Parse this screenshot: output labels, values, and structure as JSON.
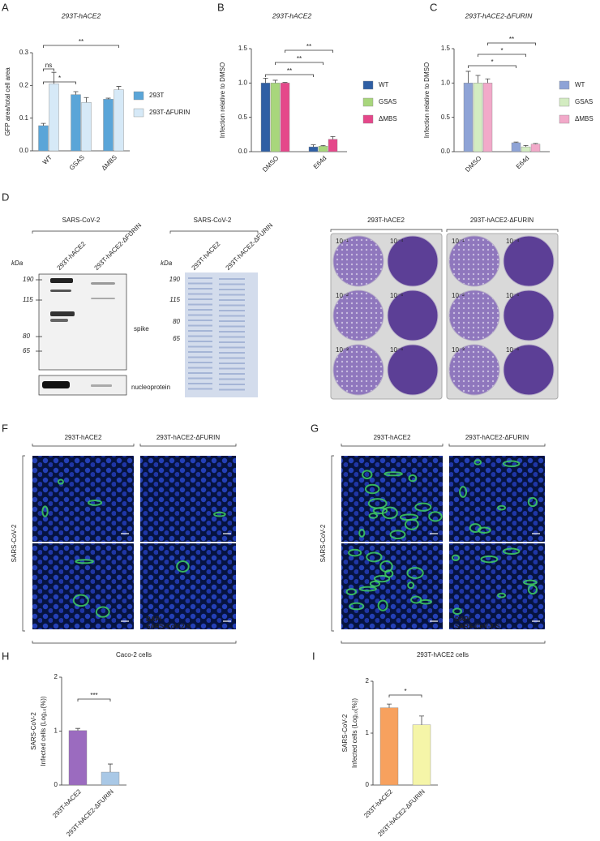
{
  "chart_data": [
    {
      "panel": "A",
      "type": "bar",
      "title": "293T-hACE2",
      "y_label": "GFP area/total cell area",
      "categories": [
        "WT",
        "GSAS",
        "ΔMBS"
      ],
      "series": [
        {
          "name": "293T",
          "color": "#5aa5d8",
          "values": [
            0.077,
            0.172,
            0.158
          ],
          "errors": [
            0.007,
            0.009,
            0.003
          ]
        },
        {
          "name": "293T-ΔFURIN",
          "color": "#d6e9f7",
          "values": [
            0.205,
            0.148,
            0.187
          ],
          "errors": [
            0.035,
            0.015,
            0.01
          ]
        }
      ],
      "ylim": [
        0,
        0.3
      ],
      "yticks": [
        {
          "value": 0,
          "label": "0.0"
        },
        0.1,
        0.2,
        0.3
      ],
      "annotations": [
        "ns",
        "*",
        "**"
      ]
    },
    {
      "panel": "B",
      "type": "bar",
      "title": "293T-hACE2",
      "y_label": "Infection relative to DMSO",
      "categories": [
        "DMSO",
        "E64d"
      ],
      "series": [
        {
          "name": "WT",
          "color": "#2f5fa4",
          "values": [
            1.0,
            0.07
          ],
          "errors": [
            0.07,
            0.03
          ]
        },
        {
          "name": "GSAS",
          "color": "#a8d67c",
          "values": [
            1.0,
            0.08
          ],
          "errors": [
            0.04,
            0.01
          ]
        },
        {
          "name": "ΔMBS",
          "color": "#e5478a",
          "values": [
            1.0,
            0.18
          ],
          "errors": [
            0.01,
            0.04
          ]
        }
      ],
      "ylim": [
        0,
        1.5
      ],
      "yticks": [
        {
          "value": 0,
          "label": "0.0"
        },
        0.5,
        {
          "value": 1,
          "label": "1.0"
        },
        1.5
      ],
      "annotations": [
        "**",
        "**",
        "**"
      ]
    },
    {
      "panel": "C",
      "type": "bar",
      "title": "293T-hACE2-ΔFURIN",
      "y_label": "Infection relative to DMSO",
      "categories": [
        "DMSO",
        "E64d"
      ],
      "series": [
        {
          "name": "WT",
          "color": "#8ea3d6",
          "values": [
            1.0,
            0.13
          ],
          "errors": [
            0.17,
            0.01
          ]
        },
        {
          "name": "GSAS",
          "color": "#d3ecc1",
          "values": [
            1.0,
            0.07
          ],
          "errors": [
            0.11,
            0.02
          ]
        },
        {
          "name": "ΔMBS",
          "color": "#f2a9c9",
          "values": [
            1.0,
            0.11
          ],
          "errors": [
            0.06,
            0.01
          ]
        }
      ],
      "ylim": [
        0,
        1.5
      ],
      "yticks": [
        {
          "value": 0,
          "label": "0.0"
        },
        0.5,
        {
          "value": 1,
          "label": "1.0"
        },
        1.5
      ],
      "annotations": [
        "*",
        "*",
        "**"
      ]
    },
    {
      "panel": "H",
      "type": "bar",
      "y_label": [
        "SARS-CoV-2",
        "Infected cells (Log₁₀(%))"
      ],
      "categories": [
        "293T-hACE2",
        "293T-hACE2-ΔFURIN"
      ],
      "values": [
        1.01,
        0.24
      ],
      "errors": [
        0.04,
        0.15
      ],
      "colors": [
        "#9b6bbf",
        "#a9c8e6"
      ],
      "ylim": [
        0,
        2
      ],
      "yticks": [
        0,
        1,
        2
      ],
      "annotations": [
        "***"
      ]
    },
    {
      "panel": "I",
      "type": "bar",
      "y_label": [
        "SARS-CoV-2",
        "Infected cells (Log₁₀(%))"
      ],
      "categories": [
        "293T-hACE2",
        "293T-hACE2-ΔFURIN"
      ],
      "values": [
        1.49,
        1.16
      ],
      "errors": [
        0.07,
        0.17
      ],
      "colors": [
        "#f7a15e",
        "#f5f5a8"
      ],
      "ylim": [
        0,
        2
      ],
      "yticks": [
        0,
        1,
        2
      ],
      "annotations": [
        "*"
      ]
    }
  ],
  "panel_d": {
    "label": "D",
    "western_blot": {
      "header": "SARS-CoV-2",
      "lanes": [
        "293T-hACE2",
        "293T-hACE2-ΔFURIN"
      ],
      "unit": "kDa",
      "markers": [
        190,
        115,
        80,
        65
      ],
      "bands": [
        "spike",
        "nucleoprotein"
      ]
    },
    "stained_gel": {
      "header": "SARS-CoV-2",
      "lanes": [
        "293T-hACE2",
        "293T-hACE2-ΔFURIN"
      ],
      "unit": "kDa",
      "markers": [
        190,
        115,
        80,
        65
      ]
    },
    "plaque_assay": {
      "plates": [
        "293T-hACE2",
        "293T-hACE2-ΔFURIN"
      ],
      "dilutions": [
        "10⁻¹",
        "10⁻⁴",
        "10⁻²",
        "10⁻⁵",
        "10⁻³",
        "10⁻⁶"
      ]
    }
  },
  "panel_f": {
    "label": "F",
    "columns": [
      "293T-hACE2",
      "293T-hACE2-ΔFURIN"
    ],
    "row_label": "SARS-CoV-2",
    "stains": [
      "DAPI",
      "SARS-CoV-2-S"
    ],
    "cells": "Caco-2 cells"
  },
  "panel_g": {
    "label": "G",
    "columns": [
      "293T-hACE2",
      "293T-hACE2-ΔFURIN"
    ],
    "row_label": "SARS-CoV-2",
    "stains": [
      "DAPI",
      "SARS-CoV-2-S"
    ],
    "cells": "293T-hACE2 cells"
  }
}
